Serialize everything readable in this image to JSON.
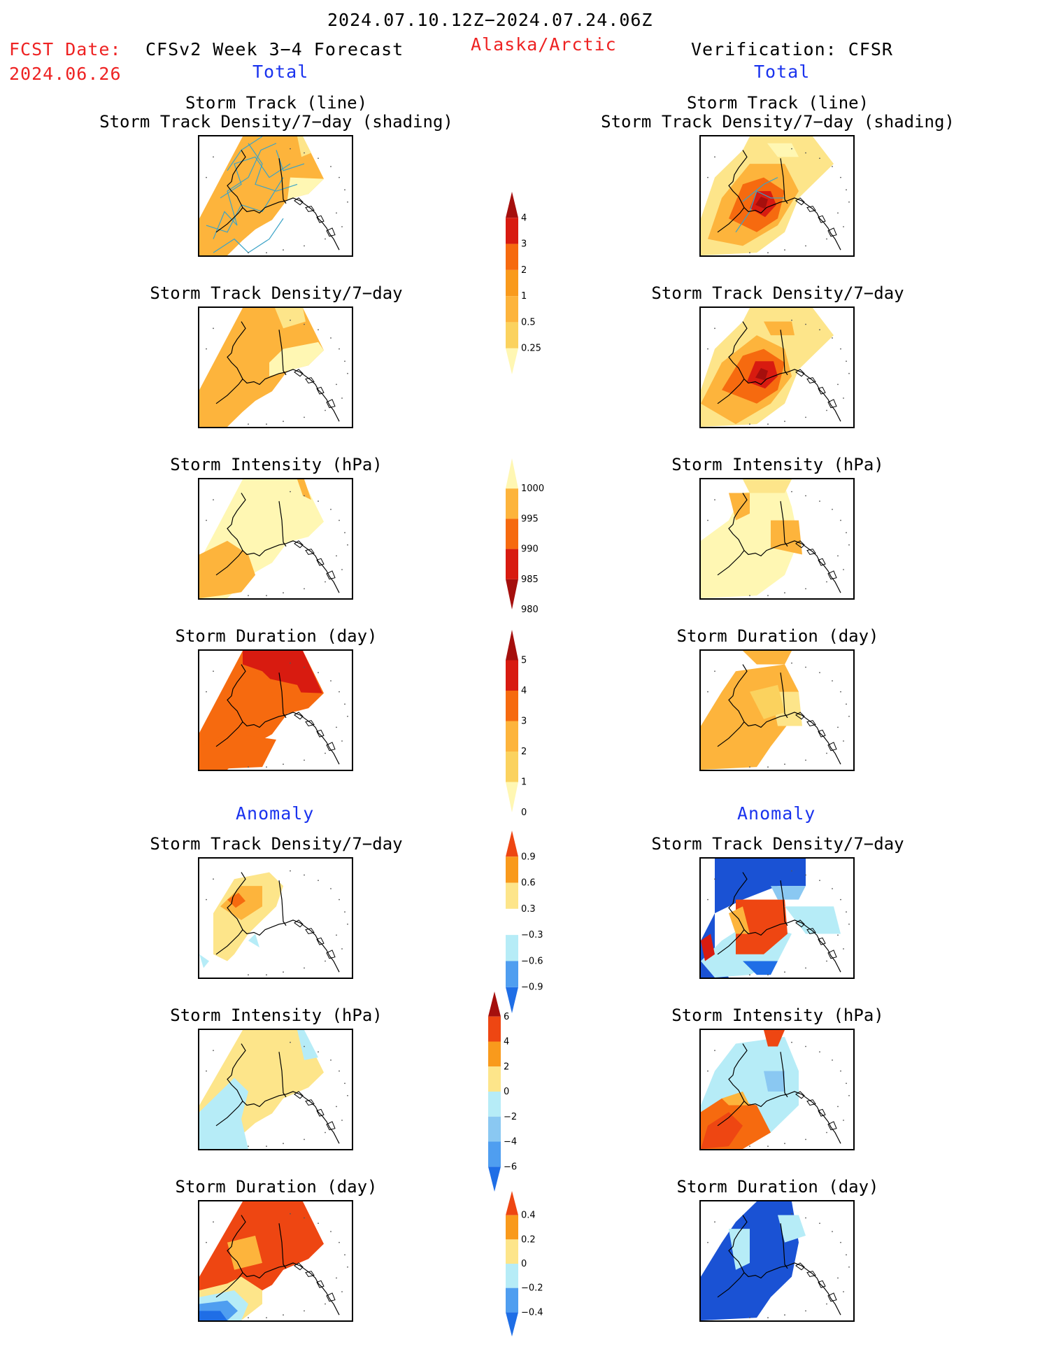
{
  "header": {
    "period": "2024.07.10.12Z−2024.07.24.06Z",
    "fcst_label": "FCST Date:",
    "fcst_date": "2024.06.26",
    "model": "CFSv2 Week 3−4 Forecast",
    "region": "Alaska/Arctic",
    "verification": "Verification: CFSR",
    "total_left": "Total",
    "total_right": "Total",
    "anomaly_left": "Anomaly",
    "anomaly_right": "Anomaly"
  },
  "panel_titles": {
    "track_line": "Storm Track (line)",
    "track_shading": "Storm Track Density/7−day (shading)",
    "track_density": "Storm Track Density/7−day",
    "intensity": "Storm Intensity (hPa)",
    "duration": "Storm Duration (day)"
  },
  "colors": {
    "pale_yellow": "#fff7b3",
    "light_yellow": "#fde58a",
    "yellow": "#fbd25e",
    "light_orange": "#fdb43c",
    "orange": "#f99a1c",
    "dark_orange": "#f66a0f",
    "red_orange": "#ee4612",
    "red": "#d81b10",
    "dark_red": "#a50f0d",
    "light_blue": "#b6ecf7",
    "mid_blue": "#8ac8f2",
    "blue": "#4f9ef0",
    "dark_blue": "#1f6ee6",
    "navy": "#1a52d4",
    "storm_line": "#3ba3c7"
  },
  "colorbars": {
    "density_total": [
      "4",
      "3",
      "2",
      "1",
      "0.5",
      "0.25"
    ],
    "intensity_total": [
      "1000",
      "995",
      "990",
      "985",
      "980"
    ],
    "duration_total": [
      "5",
      "4",
      "3",
      "2",
      "1",
      "0"
    ],
    "density_anom": [
      "0.9",
      "0.6",
      "0.3",
      "−0.3",
      "−0.6",
      "−0.9"
    ],
    "intensity_anom": [
      "6",
      "4",
      "2",
      "0",
      "−2",
      "−4",
      "−6"
    ],
    "duration_anom": [
      "0.4",
      "0.2",
      "0",
      "−0.2",
      "−0.4"
    ]
  },
  "map_icon_names": [
    "alaska-coastline",
    "us-canada-border",
    "lat-lon-dots"
  ]
}
